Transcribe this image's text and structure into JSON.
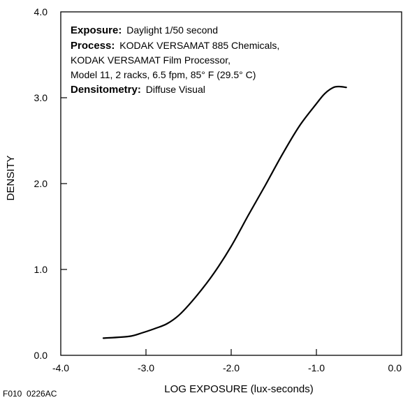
{
  "chart_data": {
    "type": "line",
    "xlabel": "LOG EXPOSURE (lux-seconds)",
    "ylabel": "DENSITY",
    "xlim": [
      -4.0,
      0.0
    ],
    "ylim": [
      0.0,
      4.0
    ],
    "x_ticks": [
      "-4.0",
      "-3.0",
      "-2.0",
      "-1.0",
      "0.0"
    ],
    "y_ticks": [
      "0.0",
      "1.0",
      "2.0",
      "3.0",
      "4.0"
    ],
    "grid": false,
    "annotation": {
      "exposure_label": "Exposure:",
      "exposure_value": "Daylight 1/50 second",
      "process_label": "Process:",
      "process_value": "KODAK VERSAMAT 885 Chemicals,",
      "process_line2": "KODAK VERSAMAT Film Processor,",
      "process_line3": "Model 11, 2 racks, 6.5 fpm, 85° F (29.5° C)",
      "densitometry_label": "Densitometry:",
      "densitometry_value": "Diffuse Visual"
    },
    "figure_code": "F010  0226AC",
    "series": [
      {
        "x": [
          -3.5,
          -3.2,
          -3.05,
          -2.9,
          -2.75,
          -2.6,
          -2.4,
          -2.2,
          -2.0,
          -1.8,
          -1.6,
          -1.4,
          -1.2,
          -1.0,
          -0.9,
          -0.8,
          -0.73,
          -0.65
        ],
        "y": [
          0.2,
          0.22,
          0.26,
          0.31,
          0.37,
          0.48,
          0.7,
          0.96,
          1.27,
          1.63,
          1.98,
          2.34,
          2.67,
          2.93,
          3.05,
          3.12,
          3.13,
          3.12
        ]
      }
    ]
  }
}
